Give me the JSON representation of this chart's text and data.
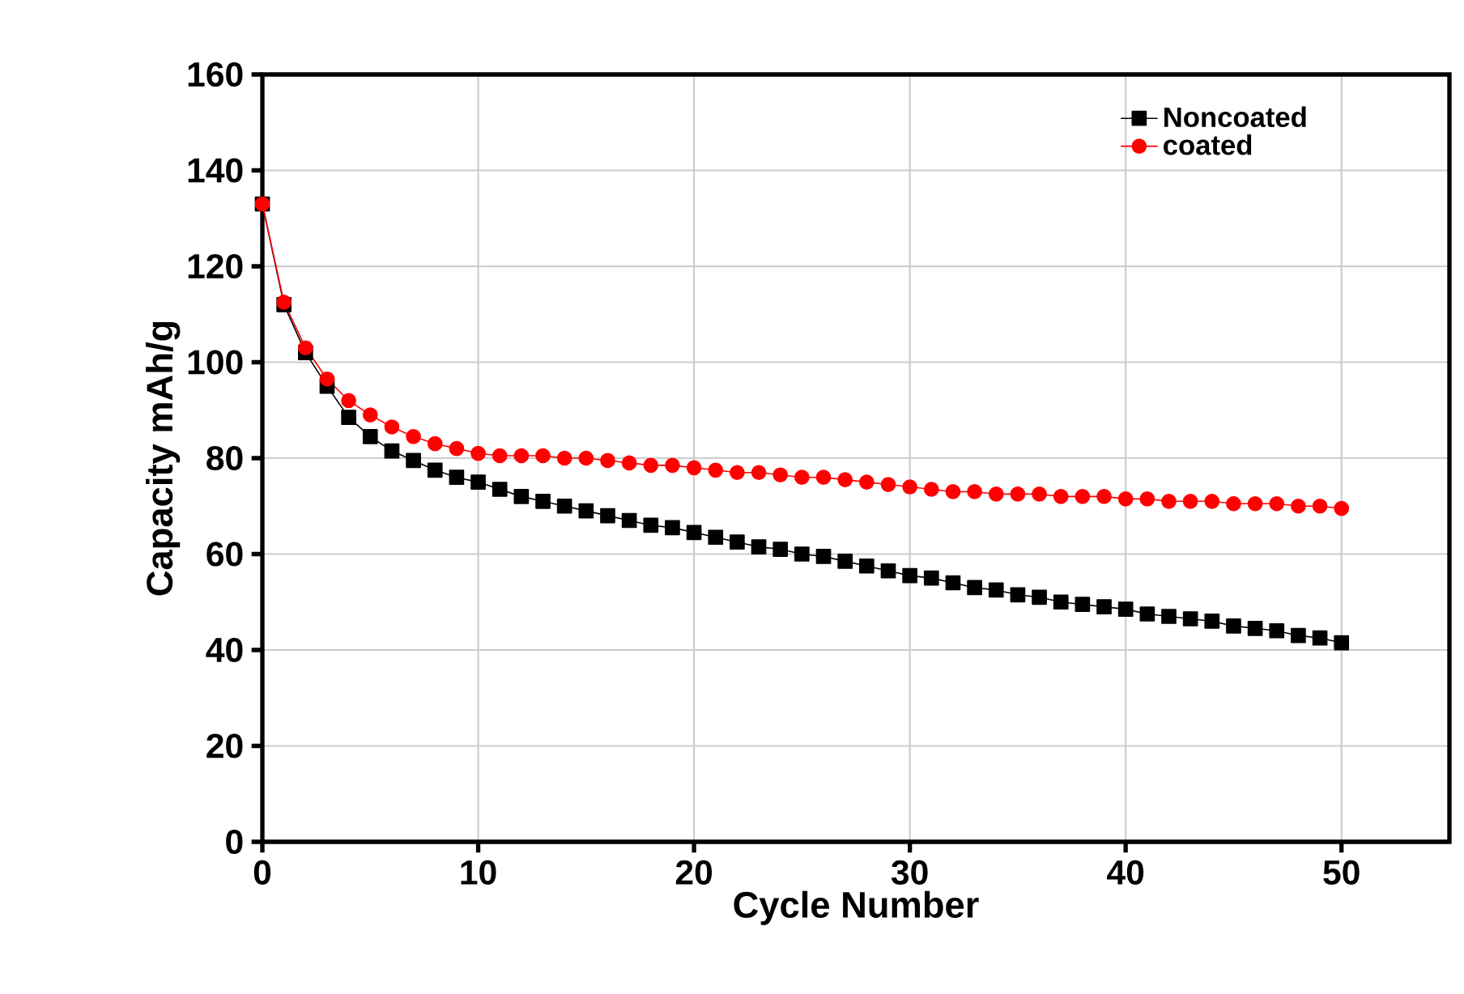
{
  "chart_data": {
    "type": "line",
    "xlabel": "Cycle Number",
    "ylabel": "Capacity mAh/g",
    "x": [
      0,
      1,
      2,
      3,
      4,
      5,
      6,
      7,
      8,
      9,
      10,
      11,
      12,
      13,
      14,
      15,
      16,
      17,
      18,
      19,
      20,
      21,
      22,
      23,
      24,
      25,
      26,
      27,
      28,
      29,
      30,
      31,
      32,
      33,
      34,
      35,
      36,
      37,
      38,
      39,
      40,
      41,
      42,
      43,
      44,
      45,
      46,
      47,
      48,
      49,
      50
    ],
    "series": [
      {
        "name": "Noncoated",
        "color": "#000000",
        "marker": "square",
        "values": [
          133,
          112,
          102,
          95,
          88.5,
          84.5,
          81.5,
          79.5,
          77.5,
          76,
          75,
          73.5,
          72,
          71,
          70,
          69,
          68,
          67,
          66,
          65.5,
          64.5,
          63.5,
          62.5,
          61.5,
          61,
          60,
          59.5,
          58.5,
          57.5,
          56.5,
          55.5,
          55,
          54,
          53,
          52.5,
          51.5,
          51,
          50,
          49.5,
          49,
          48.5,
          47.5,
          47,
          46.5,
          46,
          45,
          44.5,
          44,
          43,
          42.5,
          41.5
        ]
      },
      {
        "name": "coated",
        "color": "#ff0000",
        "marker": "circle",
        "values": [
          133,
          112.5,
          103,
          96.5,
          92,
          89,
          86.5,
          84.5,
          83,
          82,
          81,
          80.5,
          80.5,
          80.5,
          80,
          80,
          79.5,
          79,
          78.5,
          78.5,
          78,
          77.5,
          77,
          77,
          76.5,
          76,
          76,
          75.5,
          75,
          74.5,
          74,
          73.5,
          73,
          73,
          72.5,
          72.5,
          72.5,
          72,
          72,
          72,
          71.5,
          71.5,
          71,
          71,
          71,
          70.5,
          70.5,
          70.5,
          70,
          70,
          69.5
        ]
      }
    ],
    "xlim": [
      0,
      55
    ],
    "ylim": [
      0,
      160
    ],
    "xticks": [
      0,
      10,
      20,
      30,
      40,
      50
    ],
    "yticks": [
      0,
      20,
      40,
      60,
      80,
      100,
      120,
      140,
      160
    ],
    "grid": true,
    "legend": "top right",
    "line_style": "solid"
  }
}
